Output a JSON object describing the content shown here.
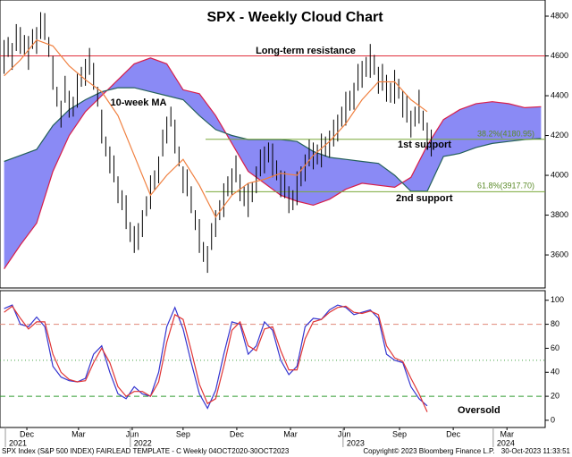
{
  "chart_data": [
    {
      "type": "cloud",
      "title": "SPX - Weekly Cloud Chart",
      "ylim": [
        3434,
        4881
      ],
      "yticks": [
        3600,
        3800,
        4000,
        4200,
        4400,
        4600,
        4800
      ],
      "xlim": [
        -1,
        133
      ],
      "price": {
        "color": "#000000",
        "x": [
          0,
          1,
          2,
          3,
          4,
          5,
          6,
          7,
          8,
          9,
          10,
          11,
          12,
          13,
          14,
          15,
          16,
          17,
          18,
          19,
          20,
          21,
          22,
          23,
          24,
          25,
          26,
          27,
          28,
          29,
          30,
          31,
          32,
          33,
          34,
          35,
          36,
          37,
          38,
          39,
          40,
          41,
          42,
          43,
          44,
          45,
          46,
          47,
          48,
          49,
          50,
          51,
          52,
          53,
          54,
          55,
          56,
          57,
          58,
          59,
          60,
          61,
          62,
          63,
          64,
          65,
          66,
          67,
          68,
          69,
          70,
          71,
          72,
          73,
          74,
          75,
          76,
          77,
          78,
          79,
          80,
          81,
          82,
          83,
          84,
          85,
          86,
          87,
          88,
          89,
          90,
          91,
          92,
          93,
          94,
          95,
          96,
          97,
          98,
          99,
          100,
          101,
          102,
          103,
          104,
          105
        ],
        "high": [
          4680,
          4695,
          4665,
          4760,
          4745,
          4705,
          4700,
          4735,
          4745,
          4820,
          4815,
          4695,
          4600,
          4445,
          4375,
          4500,
          4425,
          4395,
          4510,
          4545,
          4585,
          4640,
          4565,
          4445,
          4330,
          4195,
          4145,
          4100,
          3995,
          3925,
          3900,
          3765,
          3745,
          3760,
          3825,
          3895,
          4000,
          4025,
          4095,
          4230,
          4295,
          4345,
          4280,
          4145,
          4045,
          4030,
          3945,
          3825,
          3780,
          3665,
          3645,
          3760,
          3825,
          3875,
          3960,
          3995,
          4035,
          4100,
          4005,
          3945,
          3960,
          3965,
          4045,
          4130,
          4145,
          4165,
          4160,
          4075,
          4025,
          4020,
          3945,
          3925,
          4020,
          4045,
          4105,
          4180,
          4165,
          4155,
          4210,
          4195,
          4225,
          4280,
          4305,
          4345,
          4420,
          4425,
          4465,
          4560,
          4575,
          4595,
          4660,
          4605,
          4545,
          4560,
          4505,
          4465,
          4530,
          4485,
          4425,
          4400,
          4325,
          4345,
          4430,
          4325,
          4265,
          4230
        ],
        "low": [
          4510,
          4595,
          4530,
          4625,
          4610,
          4605,
          4530,
          4635,
          4610,
          4685,
          4680,
          4595,
          4430,
          4345,
          4240,
          4365,
          4290,
          4295,
          4340,
          4445,
          4450,
          4505,
          4430,
          4345,
          4160,
          4095,
          4010,
          3965,
          3860,
          3825,
          3730,
          3665,
          3610,
          3625,
          3690,
          3795,
          3830,
          3925,
          3960,
          4095,
          4160,
          4245,
          4110,
          4045,
          3910,
          3895,
          3810,
          3725,
          3610,
          3565,
          3510,
          3625,
          3690,
          3775,
          3790,
          3895,
          3900,
          3965,
          3870,
          3845,
          3790,
          3865,
          3910,
          3995,
          4010,
          4065,
          3990,
          3975,
          3890,
          3885,
          3810,
          3825,
          3850,
          3945,
          3970,
          4045,
          4030,
          4055,
          4040,
          4095,
          4090,
          4145,
          4170,
          4245,
          4250,
          4325,
          4330,
          4425,
          4440,
          4495,
          4490,
          4505,
          4410,
          4425,
          4370,
          4365,
          4360,
          4385,
          4290,
          4265,
          4190,
          4245,
          4260,
          4225,
          4130,
          4095
        ]
      },
      "cloud": {
        "fill": "#8a8af5",
        "span_a_color": "#d81e4a",
        "span_b_color": "#24605a",
        "x": [
          0,
          4,
          8,
          12,
          16,
          20,
          24,
          28,
          32,
          36,
          40,
          44,
          48,
          52,
          56,
          60,
          64,
          68,
          72,
          76,
          80,
          84,
          88,
          92,
          96,
          100,
          104,
          108,
          112,
          116,
          120,
          124,
          128,
          132
        ],
        "span_a": [
          3530,
          3650,
          3760,
          4020,
          4200,
          4320,
          4400,
          4480,
          4560,
          4590,
          4560,
          4430,
          4410,
          4300,
          4160,
          4020,
          3960,
          3900,
          3870,
          3850,
          3880,
          3930,
          3960,
          3950,
          3940,
          3990,
          4150,
          4280,
          4330,
          4360,
          4370,
          4360,
          4340,
          4345
        ],
        "span_b": [
          4070,
          4100,
          4130,
          4250,
          4330,
          4380,
          4420,
          4440,
          4440,
          4420,
          4400,
          4380,
          4300,
          4230,
          4200,
          4180,
          4180,
          4180,
          4170,
          4120,
          4090,
          4080,
          4070,
          4060,
          4000,
          3920,
          3920,
          4095,
          4110,
          4140,
          4160,
          4170,
          4180,
          4185
        ]
      },
      "series": [
        {
          "name": "10-week MA",
          "color": "#f08040",
          "x": [
            0,
            4,
            8,
            12,
            16,
            20,
            24,
            28,
            32,
            36,
            40,
            44,
            48,
            52,
            56,
            60,
            64,
            68,
            72,
            76,
            80,
            84,
            88,
            92,
            96,
            100,
            104
          ],
          "values": [
            4500,
            4580,
            4680,
            4650,
            4550,
            4480,
            4420,
            4300,
            4100,
            3900,
            4000,
            4080,
            3950,
            3790,
            3900,
            3960,
            3980,
            4010,
            4000,
            4100,
            4170,
            4260,
            4380,
            4470,
            4470,
            4380,
            4320
          ]
        }
      ],
      "levels": [
        {
          "label": "Long-term resistance",
          "value": 4600,
          "color": "#e0303c"
        },
        {
          "label": "38.2%(4180.95)",
          "value": 4180.95,
          "color": "#7aa838"
        },
        {
          "label": "61.8%(3917.70)",
          "value": 3917.7,
          "color": "#7aa838"
        }
      ],
      "annotations": [
        "1st support",
        "2nd support"
      ]
    },
    {
      "type": "line",
      "ylim": [
        -6,
        108
      ],
      "yticks": [
        0,
        20,
        40,
        60,
        80,
        100
      ],
      "xlim": [
        -1,
        133
      ],
      "xticks": [
        {
          "value": 5.6,
          "label": "Dec"
        },
        {
          "value": 18.3,
          "label": "Mar"
        },
        {
          "value": 31.5,
          "label": "Jun"
        },
        {
          "value": 44,
          "label": "Sep"
        },
        {
          "value": 57.2,
          "label": "Dec"
        },
        {
          "value": 70.4,
          "label": "Mar"
        },
        {
          "value": 83.6,
          "label": "Jun"
        },
        {
          "value": 97.2,
          "label": "Sep"
        },
        {
          "value": 110.4,
          "label": "Dec"
        },
        {
          "value": 123.6,
          "label": "Mar"
        }
      ],
      "year_ticks": [
        {
          "value": 3.4,
          "label": "2021"
        },
        {
          "value": 34.1,
          "label": "2022"
        },
        {
          "value": 86.4,
          "label": "2023"
        },
        {
          "value": 123.3,
          "label": "2024"
        }
      ],
      "series": [
        {
          "color": "#3535d0",
          "x": [
            0,
            2,
            4,
            6,
            8,
            10,
            12,
            14,
            16,
            18,
            20,
            22,
            24,
            26,
            28,
            30,
            32,
            34,
            36,
            38,
            40,
            42,
            44,
            46,
            48,
            50,
            52,
            54,
            56,
            58,
            60,
            62,
            64,
            66,
            68,
            70,
            72,
            74,
            76,
            78,
            80,
            82,
            84,
            86,
            88,
            90,
            92,
            94,
            96,
            98,
            100,
            102,
            104
          ],
          "values": [
            93,
            96,
            80,
            78,
            86,
            78,
            45,
            36,
            33,
            32,
            35,
            55,
            62,
            40,
            22,
            18,
            28,
            22,
            20,
            40,
            78,
            94,
            76,
            48,
            22,
            10,
            25,
            55,
            82,
            80,
            55,
            62,
            82,
            75,
            50,
            38,
            45,
            78,
            85,
            84,
            92,
            96,
            94,
            88,
            90,
            92,
            85,
            55,
            50,
            48,
            28,
            18,
            12
          ]
        },
        {
          "color": "#e03535",
          "x": [
            0,
            2,
            4,
            6,
            8,
            10,
            12,
            14,
            16,
            18,
            20,
            22,
            24,
            26,
            28,
            30,
            32,
            34,
            36,
            38,
            40,
            42,
            44,
            46,
            48,
            50,
            52,
            54,
            56,
            58,
            60,
            62,
            64,
            66,
            68,
            70,
            72,
            74,
            76,
            78,
            80,
            82,
            84,
            86,
            88,
            90,
            92,
            94,
            96,
            98,
            100,
            102,
            104
          ],
          "values": [
            90,
            95,
            85,
            76,
            82,
            82,
            55,
            40,
            34,
            32,
            33,
            48,
            60,
            48,
            28,
            20,
            24,
            24,
            20,
            32,
            65,
            88,
            84,
            58,
            30,
            14,
            18,
            45,
            75,
            82,
            62,
            58,
            76,
            78,
            58,
            42,
            42,
            68,
            82,
            84,
            90,
            94,
            95,
            90,
            89,
            91,
            88,
            62,
            52,
            49,
            35,
            22,
            7
          ]
        }
      ],
      "levels": [
        {
          "value": 80,
          "color": "#e08878",
          "dash": "6 4"
        },
        {
          "value": 50,
          "color": "#40a040",
          "dash": "1 3"
        },
        {
          "value": 20,
          "color": "#2d9a2d",
          "dash": "6 4"
        }
      ],
      "annotations": [
        "Oversold"
      ]
    }
  ],
  "footer": {
    "left": "SPX Index (S&P 500 INDEX) FAIRLEAD TEMPLATE - C  Weekly 04OCT2020-30OCT2023",
    "center": "Copyright© 2023 Bloomberg Finance L.P.",
    "right": "30-Oct-2023 11:33:51"
  }
}
